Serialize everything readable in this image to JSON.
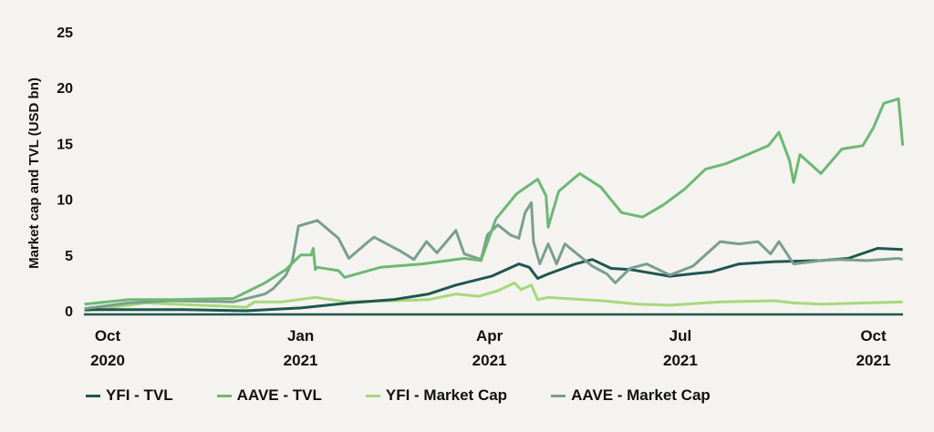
{
  "chart_data": {
    "type": "line",
    "title": "",
    "xlabel": "",
    "ylabel": "Market cap and TVL (USD bn)",
    "x_unit": "days since Oct 2020",
    "ylim": [
      0,
      25
    ],
    "yticks": [
      0,
      5,
      10,
      15,
      20,
      25
    ],
    "xlim": [
      -11,
      379
    ],
    "xticks": [
      {
        "x": 0,
        "line1": "Oct",
        "line2": "2020"
      },
      {
        "x": 92,
        "line1": "Jan",
        "line2": "2021"
      },
      {
        "x": 182,
        "line1": "Apr",
        "line2": "2021"
      },
      {
        "x": 273,
        "line1": "Jul",
        "line2": "2021"
      },
      {
        "x": 365,
        "line1": "Oct",
        "line2": "2021"
      }
    ],
    "grid": false,
    "legend_position": "bottom",
    "series": [
      {
        "name": "YFI - TVL",
        "color": "#1f5650",
        "x": [
          -11,
          36,
          66,
          92,
          115,
          136,
          153,
          166,
          183,
          196,
          201,
          205,
          210,
          223,
          231,
          240,
          249,
          268,
          288,
          301,
          318,
          340,
          353,
          367,
          379
        ],
        "y": [
          0.1,
          0.1,
          0.0,
          0.25,
          0.7,
          1.0,
          1.5,
          2.3,
          3.1,
          4.2,
          3.9,
          2.9,
          3.3,
          4.2,
          4.6,
          3.8,
          3.7,
          3.1,
          3.5,
          4.2,
          4.4,
          4.5,
          4.7,
          5.6,
          5.5
        ]
      },
      {
        "name": "AAVE - TVL",
        "color": "#6cb874",
        "x": [
          -11,
          10,
          30,
          60,
          75,
          85,
          92,
          97,
          98,
          99,
          100,
          110,
          113,
          130,
          150,
          170,
          178,
          185,
          195,
          205,
          209,
          210,
          215,
          225,
          235,
          245,
          255,
          265,
          275,
          285,
          295,
          305,
          315,
          320,
          325,
          327,
          330,
          340,
          350,
          360,
          365,
          370,
          377,
          379
        ],
        "y": [
          0.6,
          1.0,
          1.0,
          1.1,
          2.5,
          3.7,
          5.0,
          5.0,
          5.6,
          3.7,
          3.9,
          3.6,
          3.0,
          3.9,
          4.2,
          4.7,
          4.5,
          8.2,
          10.5,
          11.8,
          10.3,
          7.5,
          10.7,
          12.3,
          11.1,
          8.8,
          8.4,
          9.5,
          10.9,
          12.7,
          13.2,
          14.0,
          14.8,
          16.0,
          13.5,
          11.5,
          14.0,
          12.3,
          14.5,
          14.8,
          16.4,
          18.6,
          19.0,
          14.8
        ]
      },
      {
        "name": "YFI - Market Cap",
        "color": "#a6d87a",
        "x": [
          -11,
          10,
          18,
          57,
          66,
          70,
          83,
          99,
          114,
          136,
          153,
          166,
          177,
          186,
          194,
          197,
          202,
          205,
          210,
          218,
          236,
          253,
          268,
          292,
          318,
          327,
          340,
          379
        ],
        "y": [
          0.0,
          0.5,
          0.7,
          0.4,
          0.3,
          0.8,
          0.8,
          1.2,
          0.8,
          0.9,
          1.0,
          1.5,
          1.3,
          1.8,
          2.5,
          1.9,
          2.3,
          1.0,
          1.2,
          1.1,
          0.9,
          0.6,
          0.5,
          0.8,
          0.9,
          0.7,
          0.6,
          0.8
        ]
      },
      {
        "name": "AAVE - Market Cap",
        "color": "#7a9e90",
        "x": [
          -11,
          10,
          30,
          60,
          75,
          79,
          85,
          88,
          91,
          100,
          110,
          115,
          123,
          127,
          140,
          146,
          152,
          157,
          166,
          170,
          178,
          181,
          186,
          192,
          196,
          199,
          202,
          203,
          206,
          210,
          214,
          218,
          227,
          231,
          238,
          242,
          249,
          257,
          268,
          279,
          292,
          301,
          310,
          316,
          320,
          327,
          340,
          349,
          362,
          377,
          379
        ],
        "y": [
          0.2,
          0.7,
          0.9,
          0.8,
          1.5,
          2.0,
          3.2,
          4.4,
          7.6,
          8.1,
          6.5,
          4.7,
          6.0,
          6.6,
          5.3,
          4.6,
          6.2,
          5.2,
          7.2,
          5.1,
          4.6,
          6.8,
          7.7,
          6.8,
          6.5,
          8.8,
          9.7,
          6.2,
          4.2,
          6.0,
          4.2,
          6.0,
          4.6,
          4.0,
          3.3,
          2.5,
          3.8,
          4.2,
          3.2,
          4.0,
          6.2,
          6.0,
          6.2,
          5.1,
          6.2,
          4.2,
          4.5,
          4.6,
          4.5,
          4.7,
          4.6
        ]
      }
    ]
  }
}
